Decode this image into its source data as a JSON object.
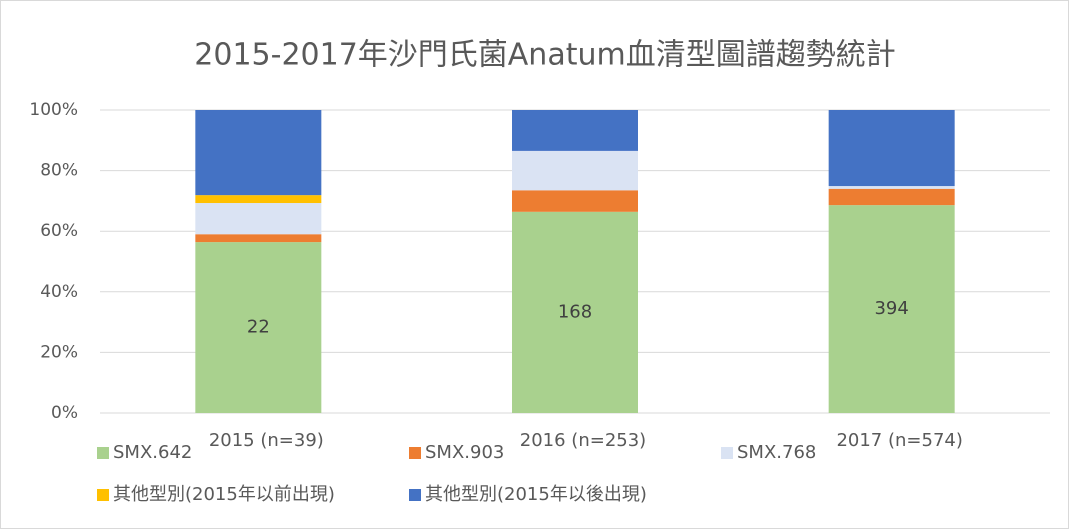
{
  "chart_data": {
    "type": "stacked_bar",
    "title": "2015-2017年沙門氏菌Anatum血清型圖譜趨勢統計",
    "categories": [
      "2015 (n=39)",
      "2016 (n=253)",
      "2017 (n=574)"
    ],
    "series": [
      {
        "name": "SMX.642",
        "color": "#a9d18e",
        "values": [
          56.4,
          66.4,
          68.6
        ]
      },
      {
        "name": "SMX.903",
        "color": "#ed7d31",
        "values": [
          2.6,
          7.1,
          5.4
        ]
      },
      {
        "name": "SMX.768",
        "color": "#dae3f3",
        "values": [
          10.3,
          13.0,
          0.9
        ]
      },
      {
        "name": "其他型別(2015年以前出現)",
        "color": "#ffc000",
        "values": [
          2.6,
          0,
          0
        ]
      },
      {
        "name": "其他型別(2015年以後出現)",
        "color": "#4472c4",
        "values": [
          28.1,
          13.5,
          25.1
        ]
      }
    ],
    "annotations": [
      "22",
      "168",
      "394"
    ],
    "ylim": [
      0,
      100
    ],
    "yticks": [
      {
        "value": 0,
        "label": "0%"
      },
      {
        "value": 20,
        "label": "20%"
      },
      {
        "value": 40,
        "label": "40%"
      },
      {
        "value": 60,
        "label": "60%"
      },
      {
        "value": 80,
        "label": "80%"
      },
      {
        "value": 100,
        "label": "100%"
      }
    ],
    "grid": true,
    "legend": "bottom"
  }
}
